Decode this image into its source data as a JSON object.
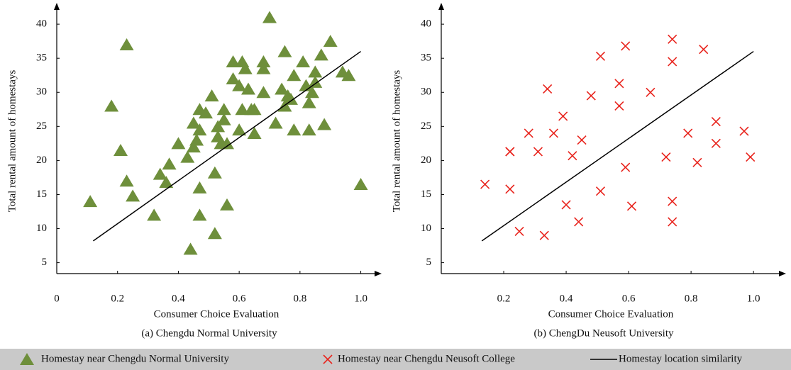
{
  "chart_data": [
    {
      "type": "scatter",
      "subtitle": "(a) Chengdu Normal University",
      "x_label": "Consumer Choice Evaluation",
      "y_label": "Total rental amount of homestays",
      "xlim": [
        0,
        1.05
      ],
      "ylim": [
        3.4,
        42.3
      ],
      "xticks": [
        0,
        0.2,
        0.4,
        0.6,
        0.8,
        {
          "value": 1,
          "label": "1.0"
        }
      ],
      "yticks": [
        5,
        10,
        15,
        20,
        25,
        30,
        35,
        40
      ],
      "series": [
        {
          "name": "Homestay near Chengdu Normal University",
          "color": "#6e8f3b",
          "marker": "triangle",
          "x": [
            0.11,
            0.18,
            0.23,
            0.21,
            0.23,
            0.25,
            0.32,
            0.34,
            0.36,
            0.37,
            0.4,
            0.43,
            0.44,
            0.45,
            0.45,
            0.46,
            0.47,
            0.47,
            0.47,
            0.47,
            0.49,
            0.51,
            0.52,
            0.52,
            0.53,
            0.53,
            0.54,
            0.55,
            0.55,
            0.56,
            0.56,
            0.58,
            0.58,
            0.6,
            0.6,
            0.61,
            0.61,
            0.62,
            0.63,
            0.64,
            0.65,
            0.65,
            0.68,
            0.68,
            0.68,
            0.7,
            0.72,
            0.74,
            0.75,
            0.75,
            0.76,
            0.77,
            0.78,
            0.78,
            0.81,
            0.82,
            0.83,
            0.83,
            0.84,
            0.85,
            0.85,
            0.87,
            0.88,
            0.9,
            0.94,
            0.96,
            1.0
          ],
          "values": [
            14,
            28,
            37,
            21.5,
            17,
            14.8,
            12,
            18,
            16.8,
            19.5,
            22.5,
            20.5,
            7,
            22,
            25.5,
            23,
            27.5,
            24.5,
            16,
            12,
            27,
            29.5,
            18.2,
            9.3,
            25,
            23.5,
            22.5,
            27.5,
            26,
            22.5,
            13.5,
            32,
            34.5,
            31,
            24.5,
            34.5,
            27.5,
            33.5,
            30.5,
            27.5,
            27.5,
            24,
            34.5,
            33.5,
            30,
            41,
            25.5,
            30.5,
            36,
            28,
            29.5,
            29,
            32.5,
            24.5,
            34.5,
            31,
            28.5,
            24.5,
            30,
            33,
            31.5,
            35.5,
            25.3,
            37.5,
            33,
            32.5,
            16.5
          ]
        },
        {
          "name": "Homestay location similarity",
          "color": "#000000",
          "marker": "line",
          "x": [
            0.12,
            1.0
          ],
          "values": [
            8.2,
            36
          ]
        }
      ]
    },
    {
      "type": "scatter",
      "subtitle": "(b) ChengDu Neusoft University",
      "x_label": "Consumer Choice Evaluation",
      "y_label": "Total rental amount of homestays",
      "xlim": [
        0,
        1.086
      ],
      "ylim": [
        3.4,
        42.3
      ],
      "xticks": [
        0.2,
        0.4,
        0.6,
        0.8,
        {
          "value": 1,
          "label": "1.0"
        }
      ],
      "yticks": [
        5,
        10,
        15,
        20,
        25,
        30,
        35,
        40
      ],
      "series": [
        {
          "name": "Homestay near Chengdu Neusoft College",
          "color": "#e8231c",
          "marker": "x",
          "x": [
            0.14,
            0.22,
            0.22,
            0.22,
            0.25,
            0.28,
            0.31,
            0.33,
            0.34,
            0.36,
            0.39,
            0.4,
            0.42,
            0.44,
            0.45,
            0.48,
            0.51,
            0.51,
            0.57,
            0.57,
            0.59,
            0.59,
            0.61,
            0.67,
            0.72,
            0.74,
            0.74,
            0.74,
            0.74,
            0.79,
            0.82,
            0.84,
            0.88,
            0.88,
            0.97,
            0.99
          ],
          "values": [
            16.5,
            21.3,
            21.3,
            15.8,
            9.6,
            24,
            21.3,
            9,
            30.5,
            24,
            26.5,
            13.5,
            20.7,
            11,
            23,
            29.5,
            35.3,
            15.5,
            31.3,
            28,
            36.8,
            19,
            13.3,
            30,
            20.5,
            37.8,
            34.5,
            14,
            11,
            24,
            19.7,
            36.3,
            25.7,
            22.5,
            24.3,
            20.5
          ]
        },
        {
          "name": "Homestay location similarity",
          "color": "#000000",
          "marker": "line",
          "x": [
            0.13,
            1.0
          ],
          "values": [
            8.2,
            36
          ]
        }
      ]
    }
  ]
}
